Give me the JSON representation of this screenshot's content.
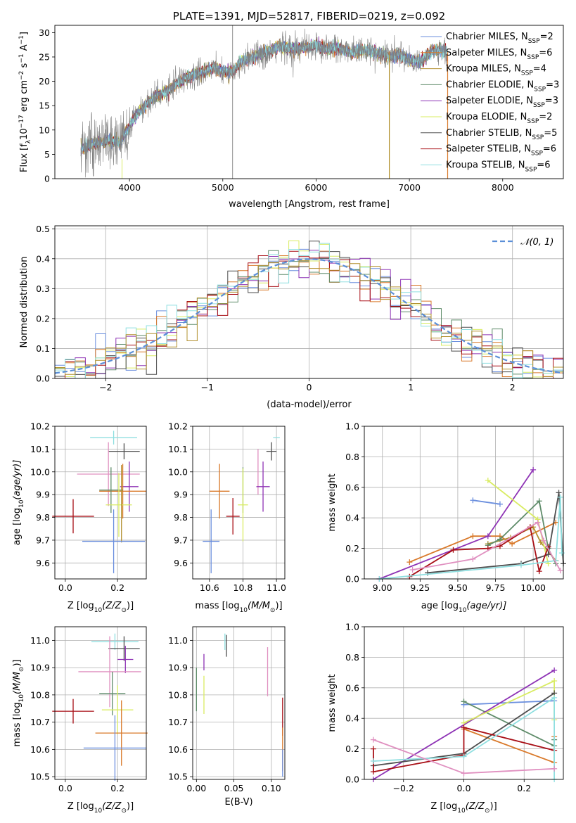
{
  "colors": {
    "blue": "#6b8fde",
    "orange": "#d9792a",
    "olive": "#b2902e",
    "green": "#5f8c6a",
    "purple": "#8e33b5",
    "lime": "#d9ec62",
    "dark": "#4e4e4e",
    "red": "#a80f16",
    "cyan": "#8fdfe0",
    "pink": "#e090c0",
    "gray": "#808080",
    "gridline": "#b0b0b0",
    "gauss": "#5b8fd8"
  },
  "chart_data": [
    {
      "id": "spectrum",
      "type": "line",
      "title": "PLATE=1391, MJD=52817, FIBERID=0219, z=0.092",
      "xlabel": "wavelength [Angstrom, rest frame]",
      "ylabel": "Flux [f",
      "ylabel_parts": [
        "Flux [f",
        "λ",
        "10",
        "−17",
        " erg cm",
        "−2",
        " s",
        "−1",
        " A",
        "−1",
        "]"
      ],
      "xlim": [
        3200,
        8650
      ],
      "ylim": [
        0,
        31.5
      ],
      "xticks": [
        "4000",
        "5000",
        "6000",
        "7000",
        "8000"
      ],
      "yticks": [
        "0",
        "5",
        "10",
        "15",
        "20",
        "25",
        "30"
      ],
      "xtick_values": [
        4000,
        5000,
        6000,
        7000,
        8000
      ],
      "ytick_values": [
        0,
        5,
        10,
        15,
        20,
        25,
        30
      ],
      "continuum": {
        "x": [
          3480,
          3600,
          3700,
          3800,
          3900,
          4000,
          4100,
          4200,
          4300,
          4400,
          4500,
          4600,
          4700,
          4800,
          4900,
          5000,
          5100,
          5200,
          5300,
          5400,
          5500,
          5600,
          5700,
          5800,
          5900,
          6000,
          6100,
          6200,
          6300,
          6400,
          6500,
          6600,
          6700,
          6800,
          6900,
          7000,
          7100,
          7200,
          7300,
          7400
        ],
        "y": [
          6.0,
          7.0,
          7.5,
          8.0,
          7.3,
          10.8,
          13.8,
          15.5,
          17.2,
          17.8,
          19.6,
          20.5,
          21.5,
          22.0,
          22.8,
          22.2,
          21.8,
          24.2,
          24.8,
          25.6,
          26.2,
          27.3,
          26.9,
          26.6,
          27.0,
          27.5,
          26.6,
          26.9,
          26.5,
          25.9,
          26.4,
          26.1,
          25.6,
          25.1,
          25.3,
          24.3,
          23.9,
          25.6,
          26.6,
          26.0
        ]
      },
      "legend": [
        {
          "label": "Chabrier MILES, N",
          "n": "2",
          "color": "#6b8fde"
        },
        {
          "label": "Salpeter MILES, N",
          "n": "6",
          "color": "#d9792a"
        },
        {
          "label": "Kroupa MILES, N",
          "n": "4",
          "color": "#b2902e"
        },
        {
          "label": "Chabrier ELODIE, N",
          "n": "3",
          "color": "#5f8c6a"
        },
        {
          "label": "Salpeter ELODIE, N",
          "n": "3",
          "color": "#8e33b5"
        },
        {
          "label": "Kroupa ELODIE, N",
          "n": "2",
          "color": "#d9ec62"
        },
        {
          "label": "Chabrier STELIB, N",
          "n": "5",
          "color": "#4e4e4e"
        },
        {
          "label": "Salpeter STELIB, N",
          "n": "6",
          "color": "#a80f16"
        },
        {
          "label": "Kroupa STELIB, N",
          "n": "6",
          "color": "#8fdfe0"
        }
      ],
      "legend_sub": "SSP",
      "legend_eq": "=",
      "legend_placement": "right",
      "grid": false
    },
    {
      "id": "residuals",
      "type": "line",
      "xlabel": "(data-model)/error",
      "ylabel": "Normed distribution",
      "xlim": [
        -2.5,
        2.5
      ],
      "ylim": [
        0,
        0.51
      ],
      "xticks": [
        "−2",
        "−1",
        "0",
        "1",
        "2"
      ],
      "xtick_values": [
        -2,
        -1,
        0,
        1,
        2
      ],
      "yticks": [
        "0.0",
        "0.1",
        "0.2",
        "0.3",
        "0.4",
        "0.5"
      ],
      "ytick_values": [
        0,
        0.1,
        0.2,
        0.3,
        0.4,
        0.5
      ],
      "bin_width": 0.1,
      "legend_label": "𝒩(0, 1)",
      "legend_placement": "top-right",
      "grid": true
    },
    {
      "id": "age_vs_z",
      "type": "scatter",
      "xlabel": "Z [log",
      "xlabel_parts": [
        "Z [log",
        "10",
        "(Z/Z",
        "⊙",
        ")]"
      ],
      "ylabel_parts": [
        "age  [log",
        "10",
        "(age/yr)]"
      ],
      "xlim": [
        -0.04,
        0.31
      ],
      "ylim": [
        9.53,
        10.2
      ],
      "xticks": [
        "0.0",
        "0.2"
      ],
      "xtick_values": [
        0,
        0.2
      ],
      "yticks": [
        "9.6",
        "9.7",
        "9.8",
        "9.9",
        "10.0",
        "10.1",
        "10.2"
      ],
      "ytick_values": [
        9.6,
        9.7,
        9.8,
        9.9,
        10.0,
        10.1,
        10.2
      ],
      "grid": true,
      "points": [
        {
          "x": 0.185,
          "y": 10.15,
          "xerr": 0.09,
          "yerr": 0.03,
          "color": "#8fdfe0"
        },
        {
          "x": 0.225,
          "y": 10.09,
          "xerr": 0.06,
          "yerr": 0.035,
          "color": "#4e4e4e"
        },
        {
          "x": 0.165,
          "y": 9.99,
          "xerr": 0.12,
          "yerr": 0.14,
          "color": "#e090c0"
        },
        {
          "x": 0.245,
          "y": 9.935,
          "xerr": 0.035,
          "yerr": 0.11,
          "color": "#8e33b5"
        },
        {
          "x": 0.22,
          "y": 9.915,
          "xerr": 0.09,
          "yerr": 0.12,
          "color": "#d9792a"
        },
        {
          "x": 0.175,
          "y": 9.92,
          "xerr": 0.045,
          "yerr": 0.1,
          "color": "#5f8c6a"
        },
        {
          "x": 0.205,
          "y": 9.855,
          "xerr": 0.05,
          "yerr": 0.14,
          "color": "#d9ec62"
        },
        {
          "x": 0.215,
          "y": 9.86,
          "xerr": 0.0,
          "yerr": 0.17,
          "color": "#b2902e"
        },
        {
          "x": 0.03,
          "y": 9.805,
          "xerr": 0.08,
          "yerr": 0.075,
          "color": "#a80f16"
        },
        {
          "x": 0.185,
          "y": 9.695,
          "xerr": 0.12,
          "yerr": 0.14,
          "color": "#6b8fde"
        }
      ]
    },
    {
      "id": "age_vs_mass",
      "type": "scatter",
      "xlabel_parts": [
        "mass [log",
        "10",
        "(M/M",
        "⊙",
        ")]"
      ],
      "xlim": [
        10.5,
        11.05
      ],
      "ylim": [
        9.53,
        10.2
      ],
      "xticks": [
        "10.6",
        "10.8",
        "11.0"
      ],
      "xtick_values": [
        10.6,
        10.8,
        11.0
      ],
      "yticks": [
        "9.6",
        "9.7",
        "9.8",
        "9.9",
        "10.0",
        "10.1",
        "10.2"
      ],
      "ytick_values": [
        9.6,
        9.7,
        9.8,
        9.9,
        10.0,
        10.1,
        10.2
      ],
      "grid": true,
      "points": [
        {
          "x": 11.0,
          "y": 10.15,
          "xerr": 0.02,
          "yerr": 0.0,
          "color": "#8fdfe0"
        },
        {
          "x": 10.97,
          "y": 10.09,
          "xerr": 0.03,
          "yerr": 0.04,
          "color": "#4e4e4e"
        },
        {
          "x": 10.89,
          "y": 10.0,
          "xerr": 0.0,
          "yerr": 0.1,
          "color": "#e090c0"
        },
        {
          "x": 10.92,
          "y": 9.935,
          "xerr": 0.04,
          "yerr": 0.11,
          "color": "#8e33b5"
        },
        {
          "x": 10.66,
          "y": 9.915,
          "xerr": 0.06,
          "yerr": 0.12,
          "color": "#d9792a"
        },
        {
          "x": 10.8,
          "y": 9.92,
          "xerr": 0.0,
          "yerr": 0.1,
          "color": "#5f8c6a"
        },
        {
          "x": 10.8,
          "y": 9.855,
          "xerr": 0.03,
          "yerr": 0.16,
          "color": "#d9ec62"
        },
        {
          "x": 10.74,
          "y": 9.805,
          "xerr": 0.04,
          "yerr": 0.08,
          "color": "#a80f16"
        },
        {
          "x": 10.61,
          "y": 9.695,
          "xerr": 0.05,
          "yerr": 0.14,
          "color": "#6b8fde"
        }
      ]
    },
    {
      "id": "weight_vs_age",
      "type": "line",
      "xlabel_parts": [
        "age  [log",
        "10",
        "(age/yr)]"
      ],
      "ylabel": "mass weight",
      "xlim": [
        8.88,
        10.2
      ],
      "ylim": [
        0,
        1.0
      ],
      "xticks": [
        "9.00",
        "9.25",
        "9.50",
        "9.75",
        "10.00"
      ],
      "xtick_values": [
        9.0,
        9.25,
        9.5,
        9.75,
        10.0
      ],
      "yticks": [
        "0.0",
        "0.2",
        "0.4",
        "0.6",
        "0.8",
        "1.0"
      ],
      "ytick_values": [
        0,
        0.2,
        0.4,
        0.6,
        0.8,
        1.0
      ],
      "grid": true,
      "series": [
        {
          "color": "#6b8fde",
          "x": [
            9.6,
            9.78
          ],
          "y": [
            0.515,
            0.49
          ]
        },
        {
          "color": "#d9792a",
          "x": [
            9.18,
            9.6,
            9.78,
            9.86,
            10.15
          ],
          "y": [
            0.11,
            0.28,
            0.28,
            0.23,
            0.37
          ]
        },
        {
          "color": "#b2902e",
          "x": [
            9.7,
            9.85,
            10.0,
            10.05,
            10.15
          ],
          "y": [
            0.23,
            0.27,
            0.34,
            0.24,
            0.12
          ]
        },
        {
          "color": "#5f8c6a",
          "x": [
            9.7,
            9.78,
            10.04,
            10.1,
            10.15
          ],
          "y": [
            0.22,
            0.26,
            0.51,
            0.2,
            0.1
          ]
        },
        {
          "color": "#8e33b5",
          "x": [
            8.98,
            9.7,
            10.0
          ],
          "y": [
            0.0,
            0.28,
            0.715
          ]
        },
        {
          "color": "#d9ec62",
          "x": [
            9.7,
            10.03,
            10.1
          ],
          "y": [
            0.645,
            0.39,
            0.1
          ]
        },
        {
          "color": "#4e4e4e",
          "x": [
            9.3,
            9.92,
            10.1,
            10.17,
            10.2
          ],
          "y": [
            0.04,
            0.1,
            0.16,
            0.565,
            0.1
          ]
        },
        {
          "color": "#a80f16",
          "x": [
            9.18,
            9.47,
            9.7,
            9.78,
            9.98,
            10.04,
            10.1
          ],
          "y": [
            0.015,
            0.19,
            0.2,
            0.215,
            0.34,
            0.05,
            0.21
          ]
        },
        {
          "color": "#8fdfe0",
          "x": [
            8.98,
            9.92,
            10.15,
            10.18,
            10.19
          ],
          "y": [
            0.0,
            0.09,
            0.12,
            0.535,
            0.17
          ]
        },
        {
          "color": "#e090c0",
          "x": [
            9.2,
            9.6,
            10.03,
            10.07,
            10.18
          ],
          "y": [
            0.06,
            0.13,
            0.37,
            0.25,
            0.055
          ]
        }
      ]
    },
    {
      "id": "mass_vs_z",
      "type": "scatter",
      "xlabel_parts": [
        "Z [log",
        "10",
        "(Z/Z",
        "⊙",
        ")]"
      ],
      "ylabel_parts": [
        "mass [log",
        "10",
        "(M/M",
        "⊙",
        ")]"
      ],
      "xlim": [
        -0.04,
        0.31
      ],
      "ylim": [
        10.49,
        11.05
      ],
      "xticks": [
        "0.0",
        "0.2"
      ],
      "xtick_values": [
        0,
        0.2
      ],
      "yticks": [
        "10.5",
        "10.6",
        "10.7",
        "10.8",
        "10.9",
        "11.0"
      ],
      "ytick_values": [
        10.5,
        10.6,
        10.7,
        10.8,
        10.9,
        11.0
      ],
      "grid": true,
      "points": [
        {
          "x": 0.19,
          "y": 10.995,
          "xerr": 0.09,
          "yerr": 0.03,
          "color": "#8fdfe0"
        },
        {
          "x": 0.225,
          "y": 10.97,
          "xerr": 0.06,
          "yerr": 0.045,
          "color": "#4e4e4e"
        },
        {
          "x": 0.23,
          "y": 10.93,
          "xerr": 0.03,
          "yerr": 0.05,
          "color": "#8e33b5"
        },
        {
          "x": 0.17,
          "y": 10.885,
          "xerr": 0.12,
          "yerr": 0.13,
          "color": "#e090c0"
        },
        {
          "x": 0.18,
          "y": 10.805,
          "xerr": 0.05,
          "yerr": 0.08,
          "color": "#5f8c6a"
        },
        {
          "x": 0.2,
          "y": 10.745,
          "xerr": 0.06,
          "yerr": 0.09,
          "color": "#d9ec62"
        },
        {
          "x": 0.03,
          "y": 10.74,
          "xerr": 0.08,
          "yerr": 0.045,
          "color": "#a80f16"
        },
        {
          "x": 0.215,
          "y": 10.66,
          "xerr": 0.1,
          "yerr": 0.12,
          "color": "#d9792a"
        },
        {
          "x": 0.19,
          "y": 10.605,
          "xerr": 0.12,
          "yerr": 0.12,
          "color": "#6b8fde"
        }
      ]
    },
    {
      "id": "mass_vs_ebv",
      "type": "scatter",
      "xlabel": "E(B-V)",
      "xlim": [
        -0.005,
        0.118
      ],
      "ylim": [
        10.49,
        11.05
      ],
      "xticks": [
        "0.00",
        "0.05",
        "0.10"
      ],
      "xtick_values": [
        0,
        0.05,
        0.1
      ],
      "yticks": [
        "10.5",
        "10.6",
        "10.7",
        "10.8",
        "10.9",
        "11.0"
      ],
      "ytick_values": [
        10.5,
        10.6,
        10.7,
        10.8,
        10.9,
        11.0
      ],
      "grid": true,
      "points": [
        {
          "x": 0.038,
          "y": 10.995,
          "xerr": 0.0,
          "yerr": 0.03,
          "color": "#8fdfe0"
        },
        {
          "x": 0.04,
          "y": 10.98,
          "xerr": 0.0,
          "yerr": 0.04,
          "color": "#4e4e4e"
        },
        {
          "x": 0.01,
          "y": 10.92,
          "xerr": 0.0,
          "yerr": 0.03,
          "color": "#8e33b5"
        },
        {
          "x": 0.095,
          "y": 10.885,
          "xerr": 0.0,
          "yerr": 0.09,
          "color": "#e090c0"
        },
        {
          "x": 0.0,
          "y": 10.82,
          "xerr": 0.0,
          "yerr": 0.08,
          "color": "#5f8c6a"
        },
        {
          "x": 0.01,
          "y": 10.8,
          "xerr": 0.0,
          "yerr": 0.07,
          "color": "#d9ec62"
        },
        {
          "x": 0.115,
          "y": 10.72,
          "xerr": 0.0,
          "yerr": 0.07,
          "color": "#a80f16"
        },
        {
          "x": 0.115,
          "y": 10.6,
          "xerr": 0.0,
          "yerr": 0.08,
          "color": "#d9792a"
        },
        {
          "x": 0.115,
          "y": 10.55,
          "xerr": 0.0,
          "yerr": 0.05,
          "color": "#6b8fde"
        }
      ]
    },
    {
      "id": "weight_vs_z",
      "type": "line",
      "xlabel_parts": [
        "Z [log",
        "10",
        "(Z/Z",
        "⊙",
        ")]"
      ],
      "ylabel": "mass weight",
      "xlim": [
        -0.33,
        0.33
      ],
      "ylim": [
        0,
        1.0
      ],
      "xticks": [
        "−0.2",
        "0.0",
        "0.2"
      ],
      "xtick_values": [
        -0.2,
        0,
        0.2
      ],
      "yticks": [
        "0.0",
        "0.2",
        "0.4",
        "0.6",
        "0.8",
        "1.0"
      ],
      "ytick_values": [
        0,
        0.2,
        0.4,
        0.6,
        0.8,
        1.0
      ],
      "grid": true,
      "series": [
        {
          "color": "#6b8fde",
          "x": [
            0.0,
            0.3
          ],
          "y": [
            0.49,
            0.515
          ]
        },
        {
          "color": "#d9792a",
          "x": [
            0.0,
            0.3,
            0.3
          ],
          "y": [
            0.33,
            0.11,
            0.28
          ]
        },
        {
          "color": "#5f8c6a",
          "x": [
            0.0,
            0.3,
            0.3
          ],
          "y": [
            0.51,
            0.22,
            0.26
          ]
        },
        {
          "color": "#8e33b5",
          "x": [
            -0.3,
            0.3
          ],
          "y": [
            0.0,
            0.715
          ]
        },
        {
          "color": "#d9ec62",
          "x": [
            0.0,
            0.3,
            0.3
          ],
          "y": [
            0.37,
            0.645,
            0.39
          ]
        },
        {
          "color": "#4e4e4e",
          "x": [
            -0.3,
            0.0,
            0.3
          ],
          "y": [
            0.09,
            0.17,
            0.565
          ]
        },
        {
          "color": "#a80f16",
          "x": [
            -0.3,
            -0.3,
            0.0,
            0.0,
            0.3
          ],
          "y": [
            0.2,
            0.05,
            0.16,
            0.34,
            0.19
          ]
        },
        {
          "color": "#8fdfe0",
          "x": [
            -0.3,
            0.0,
            0.3,
            0.3
          ],
          "y": [
            0.12,
            0.15,
            0.535,
            0.0
          ]
        },
        {
          "color": "#e090c0",
          "x": [
            -0.3,
            0.0,
            0.3
          ],
          "y": [
            0.26,
            0.04,
            0.07
          ]
        }
      ]
    }
  ]
}
